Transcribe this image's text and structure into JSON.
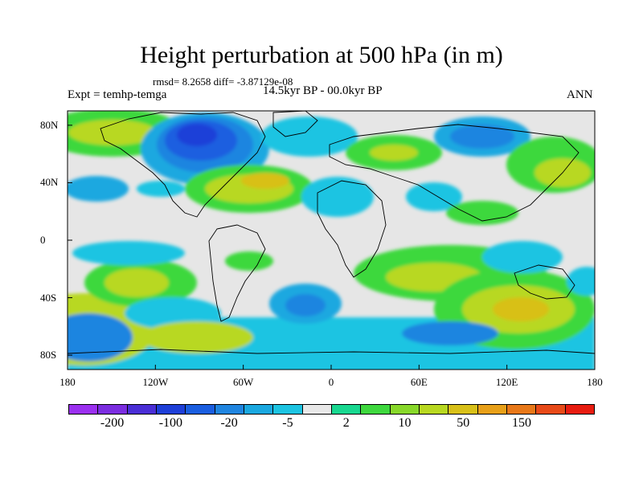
{
  "title": "Height perturbation at 500 hPa (in m)",
  "stats": "rmsd= 8.2658 diff= -3.87129e-08",
  "experiment": "Expt = temhp-temga",
  "period": "14.5kyr BP - 00.0kyr BP",
  "season": "ANN",
  "x_ticks": [
    "180",
    "120W",
    "60W",
    "0",
    "60E",
    "120E",
    "180"
  ],
  "y_ticks": [
    "80N",
    "40N",
    "0",
    "40S",
    "80S"
  ],
  "colorbar": {
    "colors": [
      "#9b30f0",
      "#7b2de0",
      "#4a2ed6",
      "#1e3fd8",
      "#1a5ee0",
      "#1f85e0",
      "#1aa8e0",
      "#1cc4e2",
      "#e8e8e8",
      "#18d890",
      "#3ed83e",
      "#88d82a",
      "#b8d820",
      "#d8c018",
      "#e8a018",
      "#e87818",
      "#e84a18",
      "#e81c10"
    ],
    "labels": [
      "-200",
      "-100",
      "-20",
      "-5",
      "2",
      "10",
      "50",
      "150"
    ]
  }
}
